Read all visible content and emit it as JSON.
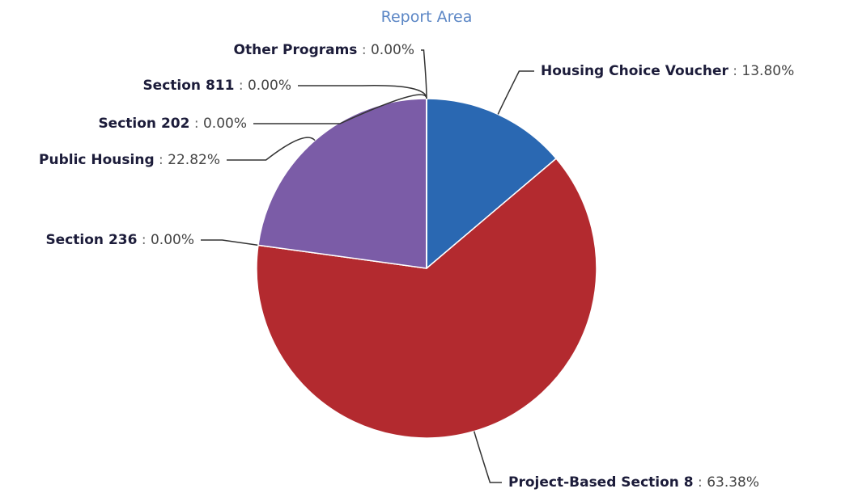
{
  "chart_data": {
    "type": "pie",
    "subtitle": "Report Area",
    "categories": [
      "Housing Choice Voucher",
      "Project-Based Section 8",
      "Section 236",
      "Public Housing",
      "Section 202",
      "Section 811",
      "Other Programs"
    ],
    "values": [
      13.8,
      63.38,
      0,
      22.82,
      0,
      0,
      0
    ],
    "value_labels": [
      "13.80%",
      "63.38%",
      "0.00%",
      "22.82%",
      "0.00%",
      "0.00%",
      "0.00%"
    ],
    "colors": [
      "#2a68b2",
      "#b32a2f",
      "#4e9a4a",
      "#7b5ca7",
      "#e08a2a",
      "#3aa0b8",
      "#888888"
    ]
  }
}
